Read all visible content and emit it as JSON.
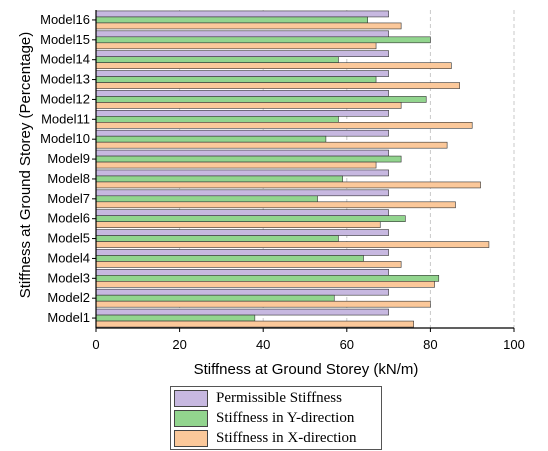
{
  "chart_data": {
    "type": "bar",
    "orientation": "horizontal",
    "categories": [
      "Model1",
      "Model2",
      "Model3",
      "Model4",
      "Model5",
      "Model6",
      "Model7",
      "Model8",
      "Model9",
      "Model10",
      "Model11",
      "Model12",
      "Model13",
      "Model14",
      "Model15",
      "Model16"
    ],
    "series": [
      {
        "name": "Permissible Stiffness",
        "color": "#c7b8e0",
        "values": [
          70,
          70,
          70,
          70,
          70,
          70,
          70,
          70,
          70,
          70,
          70,
          70,
          70,
          70,
          70,
          70
        ]
      },
      {
        "name": "Stiffness in Y-direction",
        "color": "#92d58e",
        "values": [
          38,
          57,
          82,
          64,
          58,
          74,
          53,
          59,
          73,
          55,
          58,
          79,
          67,
          58,
          80,
          65
        ]
      },
      {
        "name": "Stiffness in X-direction",
        "color": "#fbc89a",
        "values": [
          76,
          80,
          81,
          73,
          94,
          68,
          86,
          92,
          67,
          84,
          90,
          73,
          87,
          85,
          67,
          73
        ]
      }
    ],
    "xlabel": "Stiffness at Ground Storey (kN/m)",
    "ylabel": "Stiffness at Ground Storey (Percentage)",
    "xlim": [
      0,
      100
    ],
    "xticks": [
      0,
      20,
      40,
      60,
      80,
      100
    ],
    "grid": "vertical dashed",
    "legend": "bottom-center"
  }
}
